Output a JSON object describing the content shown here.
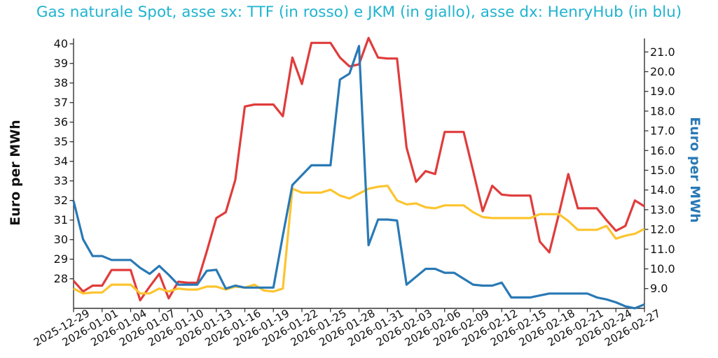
{
  "chart_data": {
    "type": "line",
    "title": "Gas naturale Spot, asse sx: TTF (in rosso) e JKM (in giallo), asse dx: HenryHub (in blu)",
    "title_color": "#1FB3D0",
    "grid": false,
    "legend": "none",
    "x": [
      "2025-12-29",
      "2025-12-30",
      "2025-12-31",
      "2026-01-01",
      "2026-01-02",
      "2026-01-03",
      "2026-01-04",
      "2026-01-05",
      "2026-01-06",
      "2026-01-07",
      "2026-01-08",
      "2026-01-09",
      "2026-01-10",
      "2026-01-11",
      "2026-01-12",
      "2026-01-13",
      "2026-01-14",
      "2026-01-15",
      "2026-01-16",
      "2026-01-17",
      "2026-01-18",
      "2026-01-19",
      "2026-01-20",
      "2026-01-21",
      "2026-01-22",
      "2026-01-23",
      "2026-01-24",
      "2026-01-25",
      "2026-01-26",
      "2026-01-27",
      "2026-01-28",
      "2026-01-29",
      "2026-01-30",
      "2026-01-31",
      "2026-02-01",
      "2026-02-02",
      "2026-02-03",
      "2026-02-04",
      "2026-02-05",
      "2026-02-06",
      "2026-02-07",
      "2026-02-08",
      "2026-02-09",
      "2026-02-10",
      "2026-02-11",
      "2026-02-12",
      "2026-02-13",
      "2026-02-14",
      "2026-02-15",
      "2026-02-16",
      "2026-02-17",
      "2026-02-18",
      "2026-02-19",
      "2026-02-20",
      "2026-02-21",
      "2026-02-22",
      "2026-02-23",
      "2026-02-24",
      "2026-02-25",
      "2026-02-26",
      "2026-02-27"
    ],
    "x_tick_labels": [
      "2025-12-29",
      "2026-01-01",
      "2026-01-04",
      "2026-01-07",
      "2026-01-10",
      "2026-01-13",
      "2026-01-16",
      "2026-01-19",
      "2026-01-22",
      "2026-01-25",
      "2026-01-28",
      "2026-01-31",
      "2026-02-03",
      "2026-02-06",
      "2026-02-09",
      "2026-02-12",
      "2026-02-15",
      "2026-02-18",
      "2026-02-21",
      "2026-02-24",
      "2026-02-27"
    ],
    "series": [
      {
        "name": "TTF",
        "axis": "left",
        "color": "#E03C3C",
        "values": [
          27.9,
          27.35,
          27.65,
          27.65,
          28.45,
          28.45,
          28.45,
          26.9,
          27.6,
          28.25,
          27.0,
          27.85,
          27.8,
          27.8,
          29.4,
          31.1,
          31.4,
          33.05,
          36.8,
          36.9,
          36.9,
          36.9,
          36.3,
          39.3,
          37.95,
          40.05,
          40.05,
          40.05,
          39.3,
          38.85,
          38.95,
          40.3,
          39.3,
          39.25,
          39.25,
          34.7,
          32.95,
          33.5,
          33.35,
          35.5,
          35.5,
          35.5,
          33.5,
          31.45,
          32.75,
          32.3,
          32.25,
          32.25,
          32.25,
          29.9,
          29.35,
          31.3,
          33.35,
          31.6,
          31.6,
          31.6,
          31.0,
          30.45,
          30.7,
          32.0,
          31.7
        ]
      },
      {
        "name": "JKM",
        "axis": "left",
        "color": "#FCC42F",
        "values": [
          27.5,
          27.25,
          27.3,
          27.3,
          27.7,
          27.7,
          27.7,
          27.25,
          27.25,
          27.5,
          27.35,
          27.5,
          27.45,
          27.45,
          27.6,
          27.6,
          27.45,
          27.6,
          27.55,
          27.7,
          27.4,
          27.35,
          27.5,
          32.6,
          32.4,
          32.4,
          32.4,
          32.55,
          32.25,
          32.1,
          32.35,
          32.6,
          32.7,
          32.75,
          32.0,
          31.8,
          31.85,
          31.65,
          31.6,
          31.75,
          31.75,
          31.75,
          31.4,
          31.15,
          31.1,
          31.1,
          31.1,
          31.1,
          31.1,
          31.3,
          31.3,
          31.3,
          30.95,
          30.5,
          30.5,
          30.5,
          30.7,
          30.05,
          30.2,
          30.3,
          30.55
        ]
      },
      {
        "name": "HenryHub",
        "axis": "right",
        "color": "#2979B5",
        "values": [
          13.45,
          11.5,
          10.65,
          10.65,
          10.45,
          10.45,
          10.45,
          10.05,
          9.75,
          10.15,
          9.7,
          9.2,
          9.2,
          9.2,
          9.9,
          9.95,
          9.0,
          9.15,
          9.05,
          9.05,
          9.05,
          9.05,
          11.7,
          14.25,
          14.75,
          15.25,
          15.25,
          15.25,
          19.6,
          19.9,
          21.3,
          11.2,
          12.5,
          12.5,
          12.45,
          9.2,
          9.6,
          10.0,
          10.0,
          9.8,
          9.8,
          9.5,
          9.2,
          9.15,
          9.15,
          9.3,
          8.55,
          8.55,
          8.55,
          8.65,
          8.75,
          8.75,
          8.75,
          8.75,
          8.75,
          8.55,
          8.45,
          8.3,
          8.1,
          8.0,
          8.2
        ]
      }
    ],
    "left_axis": {
      "label": "Euro per MWh",
      "color": "#111111",
      "ticks": [
        28,
        29,
        30,
        31,
        32,
        33,
        34,
        35,
        36,
        37,
        38,
        39,
        40
      ],
      "ylim": [
        26.5,
        40.3
      ]
    },
    "right_axis": {
      "label": "Euro per MWh",
      "color": "#2979B5",
      "ticks": [
        "9.0",
        "10.0",
        "11.0",
        "12.0",
        "13.0",
        "14.0",
        "15.0",
        "16.0",
        "17.0",
        "18.0",
        "19.0",
        "20.0",
        "21.0"
      ],
      "ylim": [
        8.0,
        21.7
      ]
    }
  }
}
